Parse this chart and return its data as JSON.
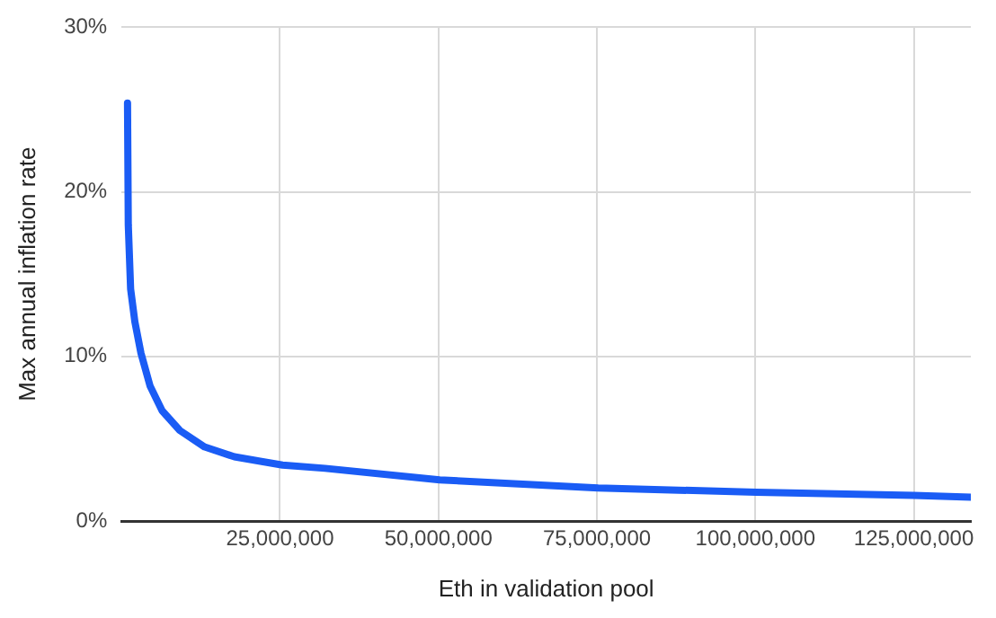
{
  "chart_data": {
    "type": "line",
    "xlabel": "Eth in validation pool",
    "ylabel": "Max annual inflation rate",
    "x": [
      940000,
      1060000,
      1430000,
      2100000,
      3060000,
      4500000,
      6400000,
      9200000,
      13100000,
      17800000,
      25400000,
      32100000,
      50200000,
      75200000,
      100200000,
      125000000,
      134000000
    ],
    "series": [
      {
        "color": "#1a5cf5",
        "values": [
          25.4,
          18.0,
          14.1,
          12.1,
          10.2,
          8.2,
          6.7,
          5.5,
          4.5,
          3.9,
          3.4,
          3.2,
          2.5,
          2.0,
          1.75,
          1.56,
          1.45
        ]
      }
    ],
    "xlim": [
      0,
      134000000
    ],
    "xticks": [
      {
        "value": 25000000,
        "label": "25,000,000"
      },
      {
        "value": 50000000,
        "label": "50,000,000"
      },
      {
        "value": 75000000,
        "label": "75,000,000"
      },
      {
        "value": 100000000,
        "label": "100,000,000"
      },
      {
        "value": 125000000,
        "label": "125,000,000"
      }
    ],
    "ylim": [
      0,
      30
    ],
    "yticks": [
      {
        "value": 0,
        "label": "0%"
      },
      {
        "value": 10,
        "label": "10%"
      },
      {
        "value": 20,
        "label": "20%"
      },
      {
        "value": 30,
        "label": "30%"
      }
    ],
    "grid": true
  }
}
